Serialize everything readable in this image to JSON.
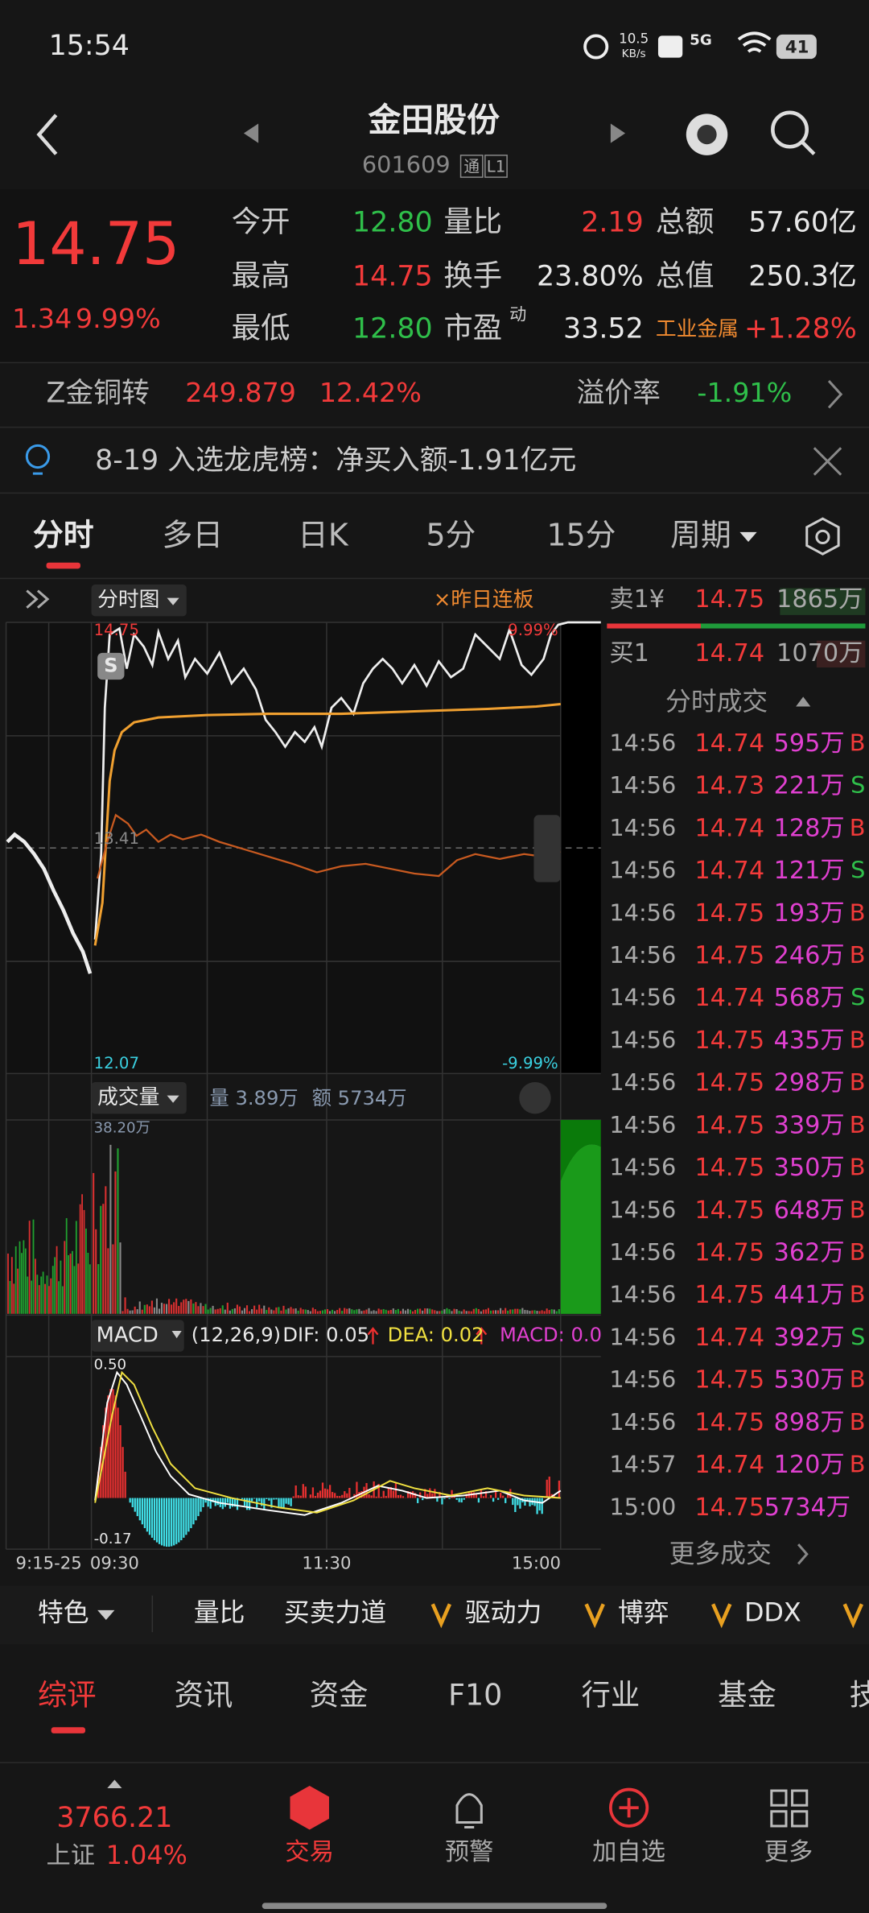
{
  "status_bar": {
    "time": "15:54",
    "net_speed": "10.5",
    "net_unit": "KB/s",
    "signal": "5G",
    "battery": "41"
  },
  "header": {
    "title": "金田股份",
    "code": "601609",
    "badges": [
      "通",
      "L1"
    ]
  },
  "quote": {
    "price": "14.75",
    "change": "1.34",
    "change_pct": "9.99%",
    "fields": [
      {
        "label": "今开",
        "value": "12.80"
      },
      {
        "label": "最高",
        "value": "14.75"
      },
      {
        "label": "最低",
        "value": "12.80"
      },
      {
        "label": "量比",
        "value": "2.19"
      },
      {
        "label": "换手",
        "value": "23.80%"
      },
      {
        "label": "市盈",
        "sup": "动",
        "value": "33.52"
      },
      {
        "label": "总额",
        "value": "57.60亿"
      },
      {
        "label": "总值",
        "value": "250.3亿"
      },
      {
        "label": "工业金属",
        "value": "+1.28%"
      }
    ]
  },
  "bond": {
    "name": "Z金铜转",
    "price": "249.879",
    "change_pct": "12.42%",
    "premium_label": "溢价率",
    "premium": "-1.91%"
  },
  "notice": "8-19 入选龙虎榜：净买入额-1.91亿元",
  "chart_tabs": [
    "分时",
    "多日",
    "日K",
    "5分",
    "15分",
    "周期"
  ],
  "intraday": {
    "mode": "分时图",
    "overlay": "×昨日连板",
    "high": "14.75",
    "high_pct": "9.99%",
    "mid": "13.41",
    "low": "12.07",
    "low_pct": "-9.99%",
    "marker": "S"
  },
  "volume": {
    "title": "成交量",
    "vol": "量 3.89万",
    "amount": "额 5734万",
    "max": "38.20万"
  },
  "macd": {
    "title": "MACD",
    "params": "(12,26,9)",
    "dif": "DIF: 0.05",
    "dea": "DEA: 0.02",
    "macd": "MACD: 0.0",
    "max": "0.50",
    "min": "-0.17"
  },
  "time_axis": [
    "9:15-25",
    "09:30",
    "11:30",
    "15:00"
  ],
  "order_book": {
    "ask_label": "卖1¥",
    "ask_price": "14.75",
    "ask_volume": "1865万",
    "bid_label": "买1",
    "bid_price": "14.74",
    "bid_volume": "1070万"
  },
  "trades_title": "分时成交",
  "trades": [
    {
      "time": "14:56",
      "price": "14.74",
      "volume": "595万",
      "side": "B"
    },
    {
      "time": "14:56",
      "price": "14.73",
      "volume": "221万",
      "side": "S"
    },
    {
      "time": "14:56",
      "price": "14.74",
      "volume": "128万",
      "side": "B"
    },
    {
      "time": "14:56",
      "price": "14.74",
      "volume": "121万",
      "side": "S"
    },
    {
      "time": "14:56",
      "price": "14.75",
      "volume": "193万",
      "side": "B"
    },
    {
      "time": "14:56",
      "price": "14.75",
      "volume": "246万",
      "side": "B"
    },
    {
      "time": "14:56",
      "price": "14.74",
      "volume": "568万",
      "side": "S"
    },
    {
      "time": "14:56",
      "price": "14.75",
      "volume": "435万",
      "side": "B"
    },
    {
      "time": "14:56",
      "price": "14.75",
      "volume": "298万",
      "side": "B"
    },
    {
      "time": "14:56",
      "price": "14.75",
      "volume": "339万",
      "side": "B"
    },
    {
      "time": "14:56",
      "price": "14.75",
      "volume": "350万",
      "side": "B"
    },
    {
      "time": "14:56",
      "price": "14.75",
      "volume": "648万",
      "side": "B"
    },
    {
      "time": "14:56",
      "price": "14.75",
      "volume": "362万",
      "side": "B"
    },
    {
      "time": "14:56",
      "price": "14.75",
      "volume": "441万",
      "side": "B"
    },
    {
      "time": "14:56",
      "price": "14.74",
      "volume": "392万",
      "side": "S"
    },
    {
      "time": "14:56",
      "price": "14.75",
      "volume": "530万",
      "side": "B"
    },
    {
      "time": "14:56",
      "price": "14.75",
      "volume": "898万",
      "side": "B"
    },
    {
      "time": "14:57",
      "price": "14.74",
      "volume": "120万",
      "side": "B"
    },
    {
      "time": "15:00",
      "price": "14.75",
      "volume": "5734万"
    }
  ],
  "more_trades": "更多成交",
  "indicators": [
    "特色",
    "量比",
    "买卖力道",
    "驱动力",
    "博弈",
    "DDX"
  ],
  "bottom_tabs": [
    "综评",
    "资讯",
    "资金",
    "F10",
    "行业",
    "基金",
    "技"
  ],
  "nav": {
    "index_value": "3766.21",
    "index_name": "上证",
    "index_change": "1.04%",
    "items": [
      "交易",
      "预警",
      "加自选",
      "更多"
    ]
  }
}
